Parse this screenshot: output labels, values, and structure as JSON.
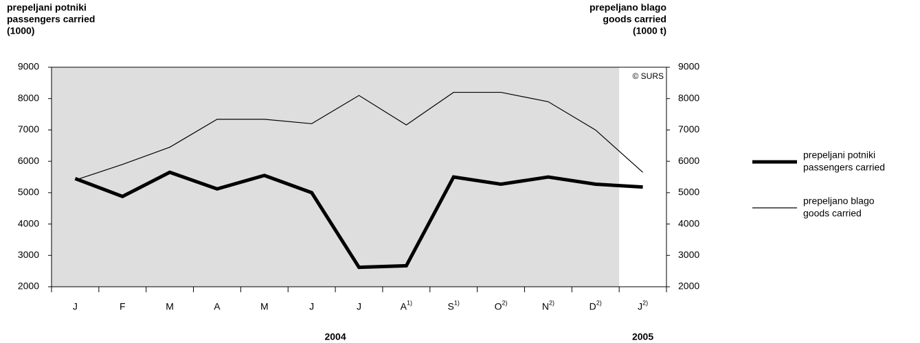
{
  "chart_data": {
    "type": "line",
    "y_label": [
      "prepeljani potniki",
      "passengers carried",
      "(1000)"
    ],
    "y2_label": [
      "prepeljano blago",
      "goods carried",
      "(1000 t)"
    ],
    "annotation": "© SURS",
    "categories": [
      "J",
      "F",
      "M",
      "A",
      "M",
      "J",
      "J",
      "A",
      "S",
      "O",
      "N",
      "D",
      "J"
    ],
    "superscripts": [
      null,
      null,
      null,
      null,
      null,
      null,
      null,
      "1)",
      "1)",
      "2)",
      "2)",
      "2)",
      "2)"
    ],
    "years": [
      {
        "label": "2004",
        "from": 0,
        "to": 11
      },
      {
        "label": "2005",
        "from": 12,
        "to": 12
      }
    ],
    "shaded_color": "#dedede",
    "series": [
      {
        "name": [
          "prepeljani potniki",
          "passengers carried"
        ],
        "color": "#000000",
        "width": 5,
        "values": [
          5450,
          4880,
          5650,
          5120,
          5550,
          5000,
          2620,
          2670,
          5500,
          5270,
          5500,
          5270,
          5180
        ]
      },
      {
        "name": [
          "prepeljano blago",
          "goods carried"
        ],
        "color": "#000000",
        "width": 1.2,
        "axis": "y2",
        "values": [
          5400,
          5900,
          6450,
          7340,
          7340,
          7200,
          8100,
          7160,
          8200,
          8200,
          7900,
          7000,
          5650
        ]
      }
    ],
    "ylim": [
      2000,
      9000
    ],
    "yticks": [
      2000,
      3000,
      4000,
      5000,
      6000,
      7000,
      8000,
      9000
    ],
    "y2lim": [
      2000,
      9000
    ],
    "y2ticks": [
      2000,
      3000,
      4000,
      5000,
      6000,
      7000,
      8000,
      9000
    ],
    "legend": "right"
  }
}
